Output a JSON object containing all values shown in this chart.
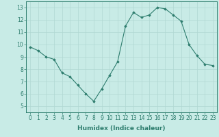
{
  "x": [
    0,
    1,
    2,
    3,
    4,
    5,
    6,
    7,
    8,
    9,
    10,
    11,
    12,
    13,
    14,
    15,
    16,
    17,
    18,
    19,
    20,
    21,
    22,
    23
  ],
  "y": [
    9.8,
    9.5,
    9.0,
    8.8,
    7.7,
    7.4,
    6.7,
    6.0,
    5.4,
    6.4,
    7.5,
    8.6,
    11.5,
    12.6,
    12.2,
    12.4,
    13.0,
    12.9,
    12.4,
    11.9,
    10.0,
    9.1,
    8.4,
    8.3
  ],
  "line_color": "#2e7d6e",
  "marker": "D",
  "marker_size": 1.8,
  "bg_color": "#c8ebe6",
  "grid_color": "#b0d8d2",
  "xlabel": "Humidex (Indice chaleur)",
  "ylim": [
    4.5,
    13.5
  ],
  "xlim": [
    -0.5,
    23.5
  ],
  "yticks": [
    5,
    6,
    7,
    8,
    9,
    10,
    11,
    12,
    13
  ],
  "xticks": [
    0,
    1,
    2,
    3,
    4,
    5,
    6,
    7,
    8,
    9,
    10,
    11,
    12,
    13,
    14,
    15,
    16,
    17,
    18,
    19,
    20,
    21,
    22,
    23
  ],
  "tick_color": "#2e7d6e",
  "label_fontsize": 6.5,
  "tick_fontsize": 5.5,
  "linewidth": 0.8
}
